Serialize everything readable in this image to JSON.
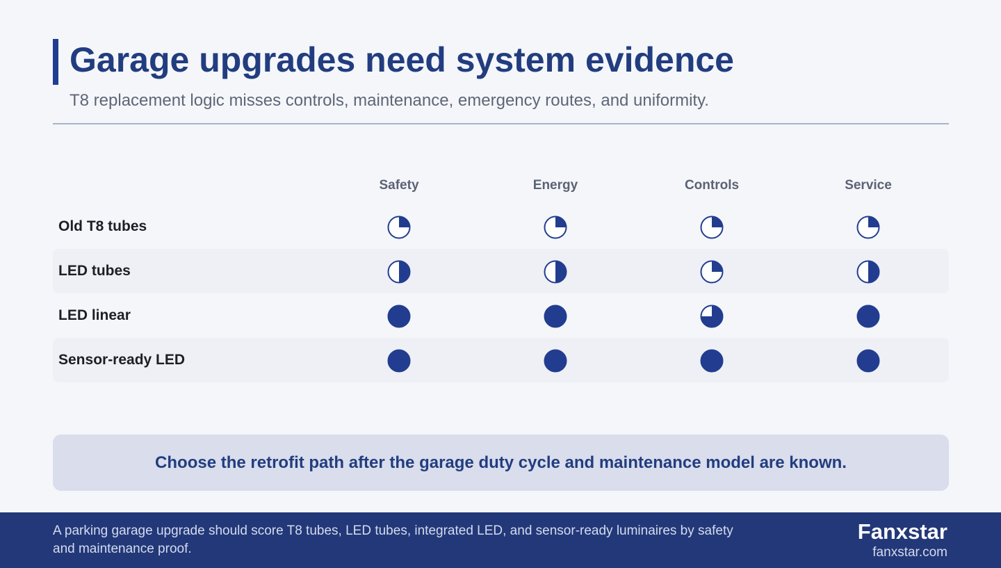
{
  "header": {
    "title": "Garage upgrades need system evidence",
    "subtitle": "T8 replacement logic misses controls, maintenance, emergency routes, and uniformity."
  },
  "chart_data": {
    "type": "table",
    "columns": [
      "Safety",
      "Energy",
      "Controls",
      "Service"
    ],
    "rows": [
      {
        "label": "Old T8 tubes",
        "values": [
          0.25,
          0.25,
          0.25,
          0.25
        ]
      },
      {
        "label": "LED tubes",
        "values": [
          0.5,
          0.5,
          0.25,
          0.5
        ]
      },
      {
        "label": "LED linear",
        "values": [
          1,
          1,
          0.75,
          1
        ]
      },
      {
        "label": "Sensor-ready LED",
        "values": [
          1,
          1,
          1,
          1
        ]
      }
    ],
    "scale": "fraction of Harvey ball filled (0–1)"
  },
  "callout": {
    "text": "Choose the retrofit path after the garage duty cycle and maintenance model are known."
  },
  "footer": {
    "text": "A parking garage upgrade should score T8 tubes, LED tubes, integrated LED, and sensor-ready luminaires by safety and maintenance proof.",
    "brand": "Fanxstar",
    "url": "fanxstar.com"
  },
  "colors": {
    "accent": "#223d8f",
    "ball_fill": "#223d8f",
    "footer_bg": "#223878",
    "callout_bg": "#d9ddec"
  }
}
